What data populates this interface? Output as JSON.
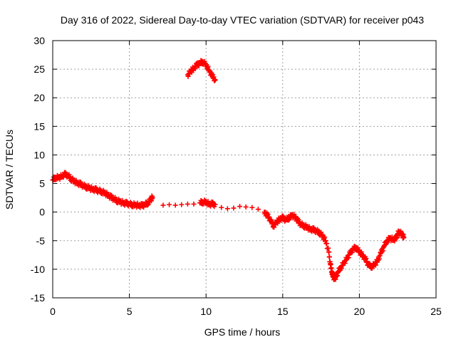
{
  "chart_data": {
    "type": "scatter",
    "title": "Day 316 of 2022, Sidereal Day-to-day VTEC variation (SDTVAR) for receiver p043",
    "xlabel": "GPS time / hours",
    "ylabel": "SDTVAR / TECUs",
    "xlim": [
      0,
      25
    ],
    "ylim": [
      -15,
      30
    ],
    "xticks": [
      "0",
      "5",
      "10",
      "15",
      "20",
      "25"
    ],
    "yticks": [
      "-15",
      "-10",
      "-5",
      "0",
      "5",
      "10",
      "15",
      "20",
      "25",
      "30"
    ],
    "grid": true,
    "marker": "plus",
    "series": [
      {
        "name": "SDTVAR",
        "color": "#ff0000",
        "points": [
          [
            0.0,
            5.6
          ],
          [
            0.2,
            6.1
          ],
          [
            0.4,
            6.0
          ],
          [
            0.6,
            6.3
          ],
          [
            0.8,
            6.6
          ],
          [
            1.0,
            6.4
          ],
          [
            1.2,
            5.8
          ],
          [
            1.4,
            5.4
          ],
          [
            1.6,
            5.1
          ],
          [
            1.8,
            4.9
          ],
          [
            2.0,
            4.6
          ],
          [
            2.2,
            4.4
          ],
          [
            2.4,
            4.2
          ],
          [
            2.6,
            4.0
          ],
          [
            2.8,
            3.9
          ],
          [
            3.0,
            3.7
          ],
          [
            3.2,
            3.6
          ],
          [
            3.4,
            3.3
          ],
          [
            3.6,
            3.0
          ],
          [
            3.8,
            2.6
          ],
          [
            4.0,
            2.3
          ],
          [
            4.2,
            2.0
          ],
          [
            4.4,
            1.8
          ],
          [
            4.6,
            1.6
          ],
          [
            4.8,
            1.5
          ],
          [
            5.0,
            1.4
          ],
          [
            5.2,
            1.3
          ],
          [
            5.4,
            1.2
          ],
          [
            5.6,
            1.2
          ],
          [
            5.8,
            1.1
          ],
          [
            6.0,
            1.3
          ],
          [
            6.2,
            1.6
          ],
          [
            6.4,
            2.2
          ],
          [
            6.5,
            2.6
          ],
          [
            7.2,
            1.2
          ],
          [
            7.6,
            1.3
          ],
          [
            8.0,
            1.2
          ],
          [
            8.4,
            1.3
          ],
          [
            8.8,
            1.4
          ],
          [
            9.2,
            1.4
          ],
          [
            9.6,
            1.6
          ],
          [
            9.8,
            1.8
          ],
          [
            10.0,
            1.7
          ],
          [
            10.2,
            1.4
          ],
          [
            10.4,
            1.4
          ],
          [
            10.6,
            1.3
          ],
          [
            8.8,
            24.0
          ],
          [
            9.0,
            24.6
          ],
          [
            9.2,
            25.2
          ],
          [
            9.4,
            25.7
          ],
          [
            9.6,
            26.1
          ],
          [
            9.8,
            26.3
          ],
          [
            10.0,
            25.7
          ],
          [
            10.2,
            24.8
          ],
          [
            10.4,
            23.8
          ],
          [
            10.6,
            23.1
          ],
          [
            11.0,
            0.8
          ],
          [
            11.4,
            0.6
          ],
          [
            11.8,
            0.7
          ],
          [
            12.2,
            1.0
          ],
          [
            12.6,
            0.9
          ],
          [
            13.0,
            0.8
          ],
          [
            13.4,
            0.5
          ],
          [
            13.8,
            0.0
          ],
          [
            14.0,
            -0.6
          ],
          [
            14.2,
            -1.4
          ],
          [
            14.4,
            -2.4
          ],
          [
            14.6,
            -1.8
          ],
          [
            14.8,
            -1.2
          ],
          [
            15.0,
            -1.0
          ],
          [
            15.2,
            -1.4
          ],
          [
            15.4,
            -1.0
          ],
          [
            15.6,
            -0.6
          ],
          [
            15.8,
            -0.8
          ],
          [
            16.0,
            -1.6
          ],
          [
            16.2,
            -2.2
          ],
          [
            16.4,
            -2.4
          ],
          [
            16.6,
            -2.7
          ],
          [
            16.8,
            -3.0
          ],
          [
            17.0,
            -3.1
          ],
          [
            17.2,
            -3.3
          ],
          [
            17.4,
            -3.6
          ],
          [
            17.6,
            -4.2
          ],
          [
            17.8,
            -5.0
          ],
          [
            18.0,
            -7.0
          ],
          [
            18.1,
            -9.0
          ],
          [
            18.2,
            -10.4
          ],
          [
            18.3,
            -11.4
          ],
          [
            18.4,
            -11.6
          ],
          [
            18.5,
            -11.2
          ],
          [
            18.6,
            -10.5
          ],
          [
            18.8,
            -9.6
          ],
          [
            19.0,
            -8.9
          ],
          [
            19.2,
            -8.0
          ],
          [
            19.4,
            -7.2
          ],
          [
            19.6,
            -6.4
          ],
          [
            19.8,
            -6.2
          ],
          [
            20.0,
            -7.0
          ],
          [
            20.2,
            -7.5
          ],
          [
            20.4,
            -8.3
          ],
          [
            20.6,
            -9.3
          ],
          [
            20.8,
            -9.5
          ],
          [
            21.0,
            -9.2
          ],
          [
            21.2,
            -8.4
          ],
          [
            21.4,
            -7.2
          ],
          [
            21.6,
            -6.0
          ],
          [
            21.8,
            -5.0
          ],
          [
            22.0,
            -4.6
          ],
          [
            22.2,
            -4.8
          ],
          [
            22.4,
            -4.6
          ],
          [
            22.5,
            -3.8
          ],
          [
            22.6,
            -3.4
          ],
          [
            22.8,
            -4.0
          ],
          [
            22.9,
            -4.4
          ]
        ]
      }
    ]
  }
}
